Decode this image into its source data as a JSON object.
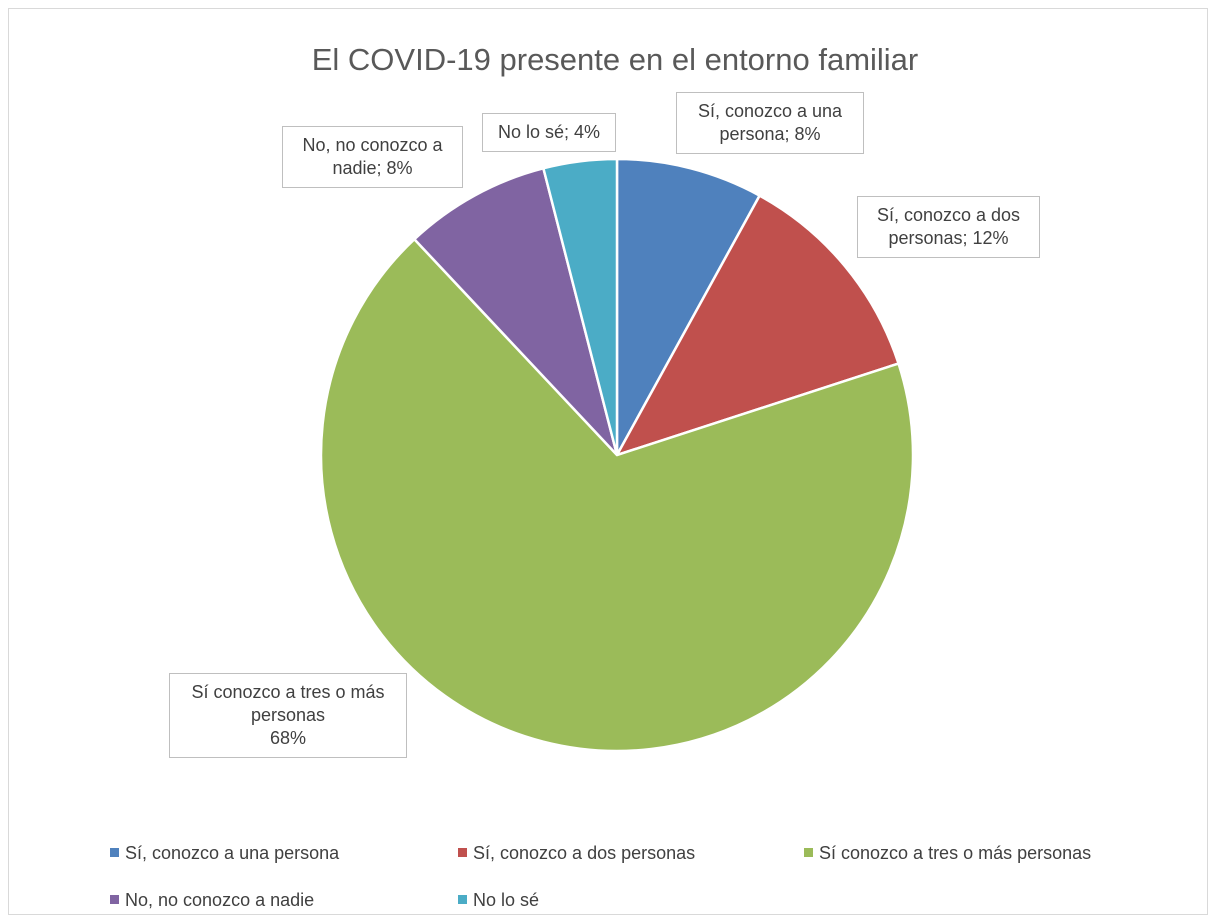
{
  "chart_data": {
    "type": "pie",
    "title": "El COVID-19 presente en el entorno familiar",
    "categories": [
      "Sí, conozco a una persona",
      "Sí, conozco a dos personas",
      "Sí conozco a tres o más personas",
      "No, no conozco a nadie",
      "No lo sé"
    ],
    "values": [
      8,
      12,
      68,
      8,
      4
    ],
    "value_labels": [
      "Sí, conozco a una persona; 8%",
      "Sí, conozco a dos personas; 12%",
      "Sí conozco a tres o más personas\n68%",
      "No, no conozco a nadie; 8%",
      "No lo sé; 4%"
    ],
    "colors": [
      "#4f81bd",
      "#c0504d",
      "#9bbb59",
      "#8064a2",
      "#4bacc6"
    ],
    "legend": "bottom"
  }
}
